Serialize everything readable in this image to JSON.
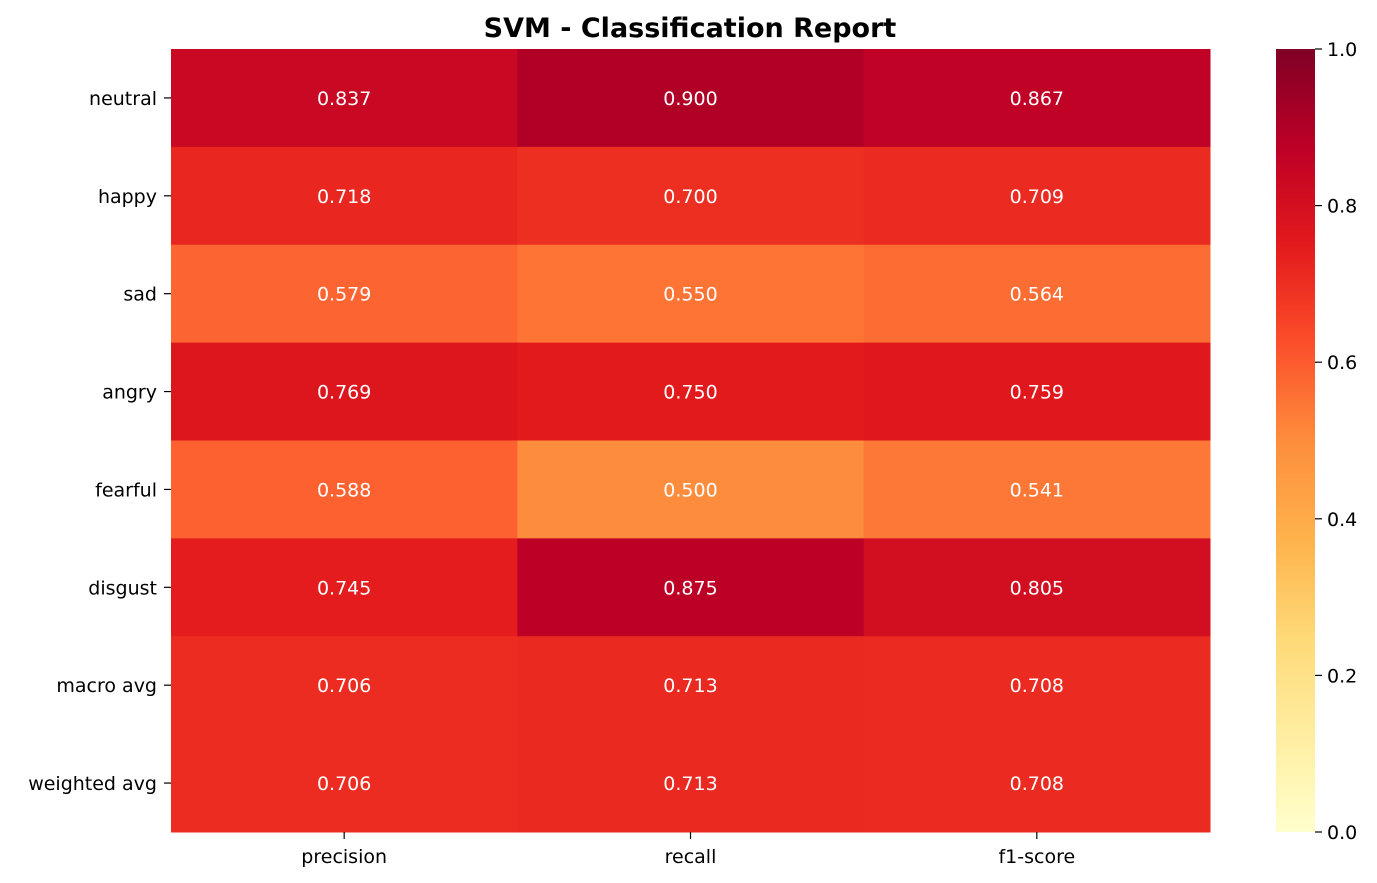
{
  "chart_data": {
    "type": "heatmap",
    "title": "SVM - Classification Report",
    "xlabel": "",
    "ylabel": "",
    "columns": [
      "precision",
      "recall",
      "f1-score"
    ],
    "rows": [
      "neutral",
      "happy",
      "sad",
      "angry",
      "fearful",
      "disgust",
      "macro avg",
      "weighted avg"
    ],
    "values": [
      [
        0.837,
        0.9,
        0.867
      ],
      [
        0.718,
        0.7,
        0.709
      ],
      [
        0.579,
        0.55,
        0.564
      ],
      [
        0.769,
        0.75,
        0.759
      ],
      [
        0.588,
        0.5,
        0.541
      ],
      [
        0.745,
        0.875,
        0.805
      ],
      [
        0.706,
        0.713,
        0.708
      ],
      [
        0.706,
        0.713,
        0.708
      ]
    ],
    "cell_labels": [
      [
        "0.837",
        "0.900",
        "0.867"
      ],
      [
        "0.718",
        "0.700",
        "0.709"
      ],
      [
        "0.579",
        "0.550",
        "0.564"
      ],
      [
        "0.769",
        "0.750",
        "0.759"
      ],
      [
        "0.588",
        "0.500",
        "0.541"
      ],
      [
        "0.745",
        "0.875",
        "0.805"
      ],
      [
        "0.706",
        "0.713",
        "0.708"
      ],
      [
        "0.706",
        "0.713",
        "0.708"
      ]
    ],
    "colormap": "YlOrRd",
    "colormap_stops": [
      "#ffffcc",
      "#ffeda0",
      "#fed976",
      "#feb24c",
      "#fd8d3c",
      "#fc4e2a",
      "#e31a1c",
      "#bd0026",
      "#800026"
    ],
    "annotation_color": "#ffffff",
    "vmin": 0,
    "vmax": 1,
    "colorbar": {
      "ticks": [
        0.0,
        0.2,
        0.4,
        0.6,
        0.8,
        1.0
      ],
      "tick_labels": [
        "0.0",
        "0.2",
        "0.4",
        "0.6",
        "0.8",
        "1.0"
      ]
    },
    "grid": false,
    "legend": "colorbar-right"
  }
}
